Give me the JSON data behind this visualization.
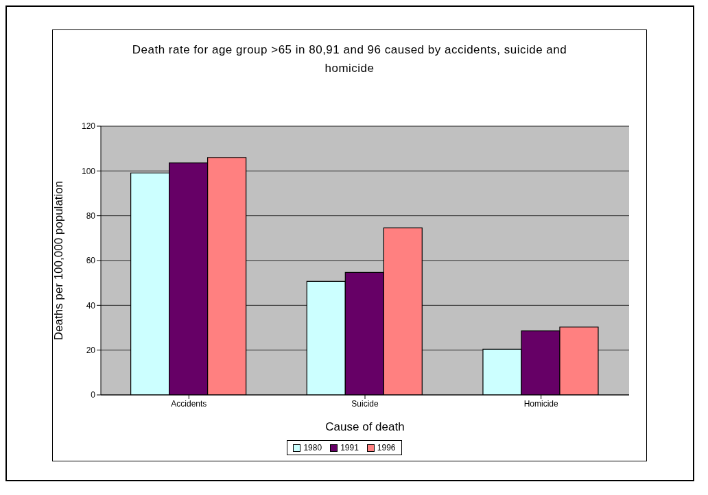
{
  "chart_data": {
    "type": "bar",
    "title": "Death rate for age group >65 in 80,91 and 96 caused by accidents, suicide and homicide",
    "xlabel": "Cause of death",
    "ylabel": "Deaths per 100,000 population",
    "categories": [
      "Accidents",
      "Suicide",
      "Homicide"
    ],
    "series": [
      {
        "name": "1980",
        "color": "#ccffff",
        "values": [
          99.1,
          50.7,
          20.4
        ]
      },
      {
        "name": "1991",
        "color": "#660066",
        "values": [
          103.6,
          54.7,
          28.6
        ]
      },
      {
        "name": "1996",
        "color": "#ff8080",
        "values": [
          106.0,
          74.6,
          30.3
        ]
      }
    ],
    "ylim": [
      0,
      120
    ],
    "yticks": [
      0,
      20,
      40,
      60,
      80,
      100,
      120
    ],
    "grid": "y",
    "legend": "bottom"
  }
}
